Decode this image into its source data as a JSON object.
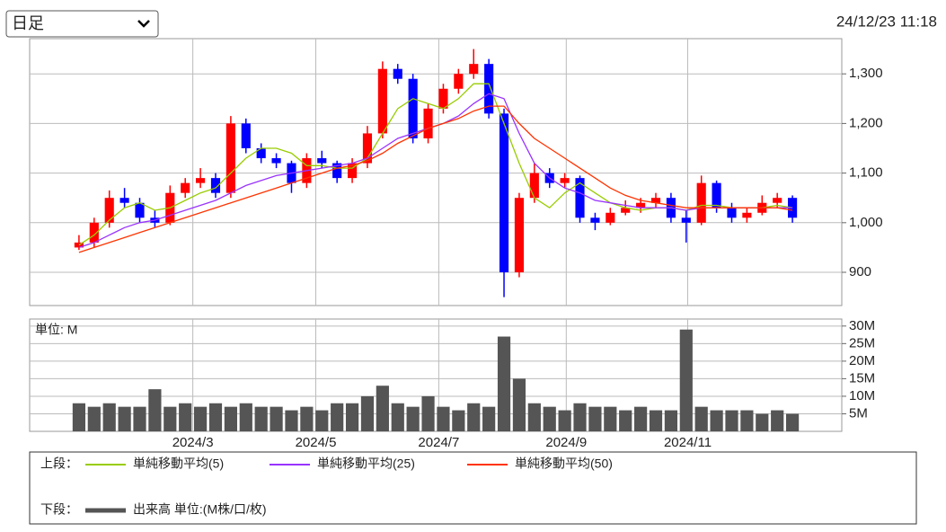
{
  "header": {
    "select": "日足",
    "timestamp": "24/12/23 11:18"
  },
  "legend": {
    "upper": "上段：",
    "lower": "下段："
  },
  "chart_data": [
    {
      "type": "candlestick",
      "open": [
        950,
        960,
        1000,
        1050,
        1040,
        1010,
        1000,
        1060,
        1080,
        1090,
        1060,
        1200,
        1150,
        1130,
        1120,
        1080,
        1130,
        1120,
        1090,
        1120,
        1180,
        1310,
        1290,
        1170,
        1230,
        1270,
        1300,
        1320,
        1220,
        900,
        1050,
        1100,
        1080,
        1090,
        1010,
        1000,
        1020,
        1030,
        1040,
        1050,
        1010,
        1000,
        1080,
        1030,
        1010,
        1020,
        1040,
        1050
      ],
      "high": [
        975,
        1010,
        1065,
        1070,
        1050,
        1025,
        1075,
        1090,
        1110,
        1100,
        1215,
        1210,
        1160,
        1140,
        1125,
        1140,
        1145,
        1125,
        1130,
        1195,
        1325,
        1320,
        1300,
        1240,
        1280,
        1310,
        1350,
        1330,
        1230,
        1060,
        1120,
        1110,
        1100,
        1095,
        1020,
        1030,
        1045,
        1050,
        1060,
        1060,
        1025,
        1095,
        1085,
        1040,
        1030,
        1055,
        1060,
        1055
      ],
      "low": [
        945,
        950,
        990,
        1030,
        1000,
        990,
        995,
        1050,
        1070,
        1050,
        1050,
        1140,
        1120,
        1110,
        1060,
        1070,
        1110,
        1080,
        1080,
        1110,
        1170,
        1280,
        1160,
        1160,
        1220,
        1260,
        1290,
        1210,
        850,
        890,
        1040,
        1070,
        1070,
        1000,
        985,
        995,
        1015,
        1020,
        1030,
        1000,
        960,
        995,
        1020,
        1000,
        1000,
        1015,
        1030,
        1000
      ],
      "close": [
        960,
        1000,
        1050,
        1040,
        1010,
        1000,
        1060,
        1080,
        1090,
        1060,
        1200,
        1150,
        1130,
        1120,
        1080,
        1130,
        1120,
        1090,
        1120,
        1180,
        1310,
        1290,
        1170,
        1230,
        1270,
        1300,
        1320,
        1220,
        900,
        1050,
        1100,
        1080,
        1090,
        1010,
        1000,
        1020,
        1030,
        1040,
        1050,
        1010,
        1000,
        1080,
        1030,
        1010,
        1020,
        1040,
        1050,
        1010
      ],
      "up_color": "#ff0000",
      "down_color": "#0000ff",
      "series": [
        {
          "name": "単純移動平均(5)",
          "color": "#99cc00",
          "values": [
            955,
            975,
            1005,
            1030,
            1040,
            1025,
            1030,
            1045,
            1060,
            1070,
            1100,
            1130,
            1150,
            1150,
            1140,
            1115,
            1115,
            1110,
            1110,
            1130,
            1180,
            1230,
            1250,
            1240,
            1230,
            1250,
            1280,
            1280,
            1200,
            1120,
            1050,
            1030,
            1060,
            1080,
            1060,
            1040,
            1030,
            1025,
            1030,
            1030,
            1025,
            1035,
            1035,
            1030,
            1030,
            1030,
            1035,
            1030
          ]
        },
        {
          "name": "単純移動平均(25)",
          "color": "#9933ff",
          "values": [
            950,
            960,
            975,
            990,
            1000,
            1005,
            1015,
            1025,
            1035,
            1045,
            1060,
            1075,
            1085,
            1095,
            1100,
            1105,
            1110,
            1115,
            1120,
            1130,
            1150,
            1170,
            1180,
            1190,
            1200,
            1215,
            1240,
            1260,
            1250,
            1180,
            1120,
            1090,
            1070,
            1060,
            1045,
            1040,
            1035,
            1030,
            1030,
            1030,
            1025,
            1030,
            1030,
            1030,
            1030,
            1030,
            1030,
            1030
          ]
        },
        {
          "name": "単純移動平均(50)",
          "color": "#ff3300",
          "values": [
            940,
            950,
            960,
            970,
            980,
            990,
            1000,
            1010,
            1020,
            1030,
            1040,
            1050,
            1060,
            1070,
            1080,
            1090,
            1100,
            1110,
            1115,
            1125,
            1140,
            1160,
            1175,
            1190,
            1200,
            1210,
            1225,
            1235,
            1235,
            1200,
            1170,
            1150,
            1130,
            1110,
            1090,
            1070,
            1055,
            1045,
            1040,
            1035,
            1030,
            1030,
            1030,
            1030,
            1030,
            1030,
            1030,
            1025
          ]
        }
      ],
      "xlim": [
        -3.25,
        50.25
      ],
      "ylim": [
        833,
        1371
      ],
      "yticks": [
        900,
        {
          "value": 1000,
          "label": "1,000"
        },
        {
          "value": 1100,
          "label": "1,100"
        },
        {
          "value": 1200,
          "label": "1,200"
        },
        {
          "value": 1300,
          "label": "1,300"
        }
      ],
      "grid": true
    },
    {
      "type": "bar",
      "unit_label": "単位: M",
      "series": [
        {
          "name": "出来高 単位:(M株/口/枚)",
          "color": "#555555",
          "values": [
            8,
            7,
            8,
            7,
            7,
            12,
            7,
            8,
            7,
            8,
            7,
            8,
            7,
            7,
            6,
            7,
            6,
            8,
            8,
            10,
            13,
            8,
            7,
            10,
            7,
            6,
            8,
            7,
            27,
            15,
            8,
            7,
            6,
            8,
            7,
            7,
            6,
            7,
            6,
            6,
            29,
            7,
            6,
            6,
            6,
            5,
            6,
            5
          ]
        }
      ],
      "xlim": [
        -3.25,
        50.25
      ],
      "xticks": [
        {
          "value": 7.5,
          "label": "2024/3"
        },
        {
          "value": 15.6,
          "label": "2024/5"
        },
        {
          "value": 23.7,
          "label": "2024/7"
        },
        {
          "value": 32.1,
          "label": "2024/9"
        },
        {
          "value": 40.1,
          "label": "2024/11"
        }
      ],
      "ylim": [
        0,
        32
      ],
      "yticks": [
        {
          "value": 5,
          "label": "5M"
        },
        {
          "value": 10,
          "label": "10M"
        },
        {
          "value": 15,
          "label": "15M"
        },
        {
          "value": 20,
          "label": "20M"
        },
        {
          "value": 25,
          "label": "25M"
        },
        {
          "value": 30,
          "label": "30M"
        }
      ],
      "grid": true
    }
  ]
}
